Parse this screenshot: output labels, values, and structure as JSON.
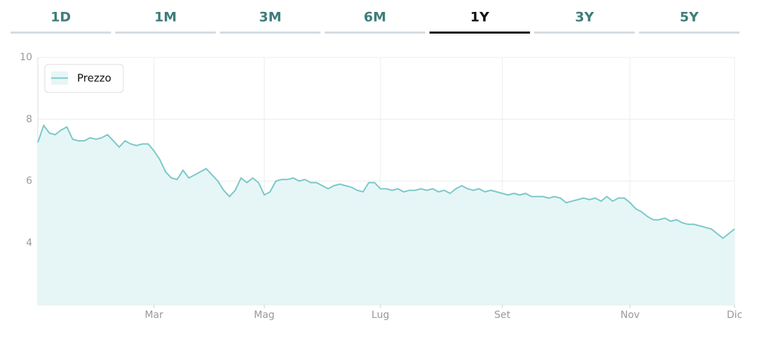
{
  "tabs": {
    "labels": [
      "1D",
      "1M",
      "3M",
      "6M",
      "1Y",
      "3Y",
      "5Y"
    ],
    "selected": "1Y"
  },
  "chart_data": {
    "type": "area",
    "categories": [
      null,
      null,
      null,
      null,
      null,
      null,
      null,
      null,
      null,
      null,
      null,
      null,
      null,
      null,
      null,
      null,
      null,
      null,
      null,
      null,
      "Mar",
      null,
      null,
      null,
      null,
      null,
      null,
      null,
      null,
      null,
      null,
      null,
      null,
      null,
      null,
      null,
      null,
      null,
      null,
      "Mag",
      null,
      null,
      null,
      null,
      null,
      null,
      null,
      null,
      null,
      null,
      null,
      null,
      null,
      null,
      null,
      null,
      null,
      null,
      null,
      "Lug",
      null,
      null,
      null,
      null,
      null,
      null,
      null,
      null,
      null,
      null,
      null,
      null,
      null,
      null,
      null,
      null,
      null,
      null,
      null,
      null,
      "Set",
      null,
      null,
      null,
      null,
      null,
      null,
      null,
      null,
      null,
      null,
      null,
      null,
      null,
      null,
      null,
      null,
      null,
      null,
      null,
      null,
      null,
      "Nov",
      null,
      null,
      null,
      null,
      null,
      null,
      null,
      null,
      null,
      null,
      null,
      null,
      null,
      null,
      null,
      null,
      null,
      "Dic"
    ],
    "series": [
      {
        "name": "Prezzo",
        "color": "#7cc8c8",
        "fill": "#e6f6f7",
        "values": [
          7.25,
          7.8,
          7.55,
          7.5,
          7.65,
          7.75,
          7.35,
          7.3,
          7.3,
          7.4,
          7.35,
          7.4,
          7.5,
          7.3,
          7.1,
          7.3,
          7.2,
          7.15,
          7.2,
          7.2,
          6.98,
          6.7,
          6.3,
          6.1,
          6.05,
          6.35,
          6.1,
          6.2,
          6.3,
          6.4,
          6.2,
          6.0,
          5.7,
          5.5,
          5.7,
          6.1,
          5.95,
          6.1,
          5.95,
          5.55,
          5.65,
          6.0,
          6.05,
          6.05,
          6.1,
          6.0,
          6.05,
          5.95,
          5.95,
          5.85,
          5.75,
          5.85,
          5.9,
          5.85,
          5.8,
          5.7,
          5.65,
          5.95,
          5.95,
          5.75,
          5.75,
          5.7,
          5.75,
          5.65,
          5.7,
          5.7,
          5.75,
          5.7,
          5.75,
          5.65,
          5.7,
          5.6,
          5.75,
          5.85,
          5.75,
          5.7,
          5.75,
          5.65,
          5.7,
          5.65,
          5.6,
          5.55,
          5.6,
          5.55,
          5.6,
          5.5,
          5.5,
          5.5,
          5.45,
          5.5,
          5.45,
          5.3,
          5.35,
          5.4,
          5.45,
          5.4,
          5.45,
          5.35,
          5.5,
          5.35,
          5.45,
          5.45,
          5.3,
          5.1,
          5.0,
          4.85,
          4.75,
          4.75,
          4.8,
          4.7,
          4.75,
          4.65,
          4.6,
          4.6,
          4.55,
          4.5,
          4.45,
          4.3,
          4.15,
          4.3,
          4.45
        ]
      }
    ],
    "ylim": [
      2,
      10
    ],
    "yticks": [
      4,
      6,
      8,
      10
    ],
    "grid": true,
    "legend": "top-left"
  }
}
